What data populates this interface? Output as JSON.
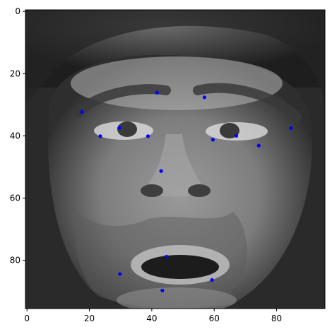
{
  "chart_data": {
    "type": "scatter",
    "title": "",
    "xlabel": "",
    "ylabel": "",
    "image": "grayscale face photograph with facial keypoints overlaid",
    "xlim": [
      -0.5,
      95.5
    ],
    "ylim": [
      95.5,
      -0.5
    ],
    "y_axis_inverted": true,
    "grid": false,
    "legend": "none",
    "x_ticks": [
      0,
      20,
      40,
      60,
      80
    ],
    "y_ticks": [
      0,
      20,
      40,
      60,
      80
    ],
    "marker_color": "#0000ff",
    "series": [
      {
        "points": [
          {
            "x": 41.7,
            "y": 26.1
          },
          {
            "x": 56.9,
            "y": 27.6
          },
          {
            "x": 17.6,
            "y": 32.3
          },
          {
            "x": 29.6,
            "y": 37.4
          },
          {
            "x": 23.5,
            "y": 40.1
          },
          {
            "x": 38.8,
            "y": 40.1
          },
          {
            "x": 84.6,
            "y": 37.5
          },
          {
            "x": 67.1,
            "y": 40.0
          },
          {
            "x": 59.6,
            "y": 41.2
          },
          {
            "x": 74.3,
            "y": 43.1
          },
          {
            "x": 43.0,
            "y": 51.3
          },
          {
            "x": 44.7,
            "y": 78.8
          },
          {
            "x": 29.8,
            "y": 84.4
          },
          {
            "x": 59.3,
            "y": 86.3
          },
          {
            "x": 43.4,
            "y": 89.7
          }
        ]
      }
    ]
  }
}
